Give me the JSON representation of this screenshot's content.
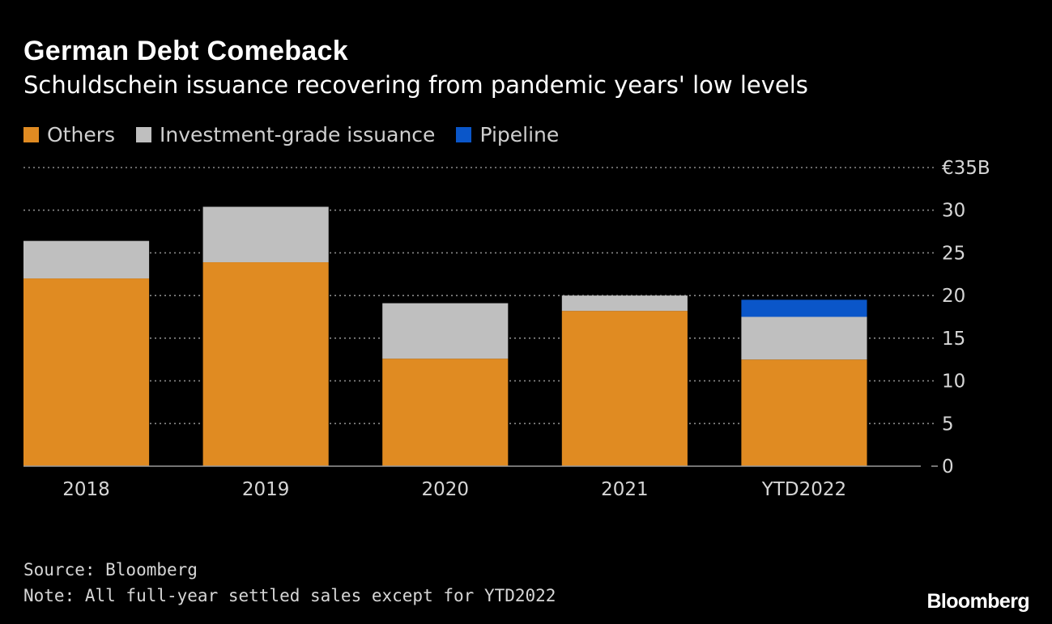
{
  "header": {
    "title": "German Debt Comeback",
    "subtitle": "Schuldschein issuance recovering from pandemic years' low levels"
  },
  "legend": [
    {
      "label": "Others",
      "color": "#e08b22"
    },
    {
      "label": "Investment-grade issuance",
      "color": "#bfbfbf"
    },
    {
      "label": "Pipeline",
      "color": "#0a56c9"
    }
  ],
  "footer": {
    "source": "Source: Bloomberg",
    "note": "Note: All full-year settled sales except for YTD2022"
  },
  "brand": "Bloomberg",
  "chart_data": {
    "type": "bar",
    "stacked": true,
    "categories": [
      "2018",
      "2019",
      "2020",
      "2021",
      "YTD2022"
    ],
    "series": [
      {
        "name": "Others",
        "color": "#e08b22",
        "values": [
          22.0,
          23.9,
          12.6,
          18.2,
          12.5
        ]
      },
      {
        "name": "Investment-grade issuance",
        "color": "#bfbfbf",
        "values": [
          4.4,
          6.5,
          6.5,
          1.8,
          5.0
        ]
      },
      {
        "name": "Pipeline",
        "color": "#0a56c9",
        "values": [
          0,
          0,
          0,
          0,
          2.0
        ]
      }
    ],
    "ylim": [
      0,
      35
    ],
    "yticks": [
      0,
      5,
      10,
      15,
      20,
      25,
      30,
      35
    ],
    "ytick_labels": [
      "0",
      "5",
      "10",
      "15",
      "20",
      "25",
      "30",
      "€35B"
    ],
    "y_axis_side": "right",
    "grid": true,
    "legend_position": "top-left"
  }
}
